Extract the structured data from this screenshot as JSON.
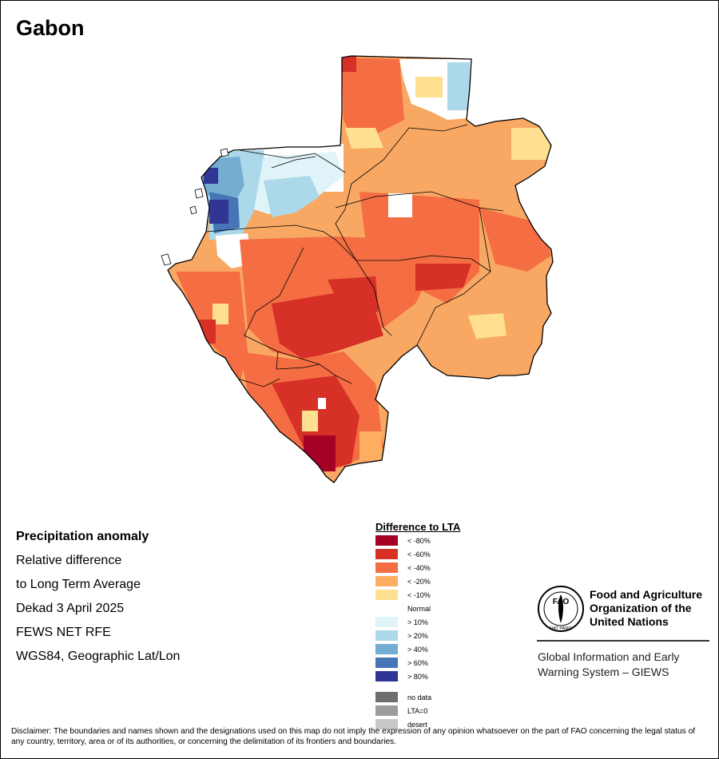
{
  "title": "Gabon",
  "info": {
    "line1": "Precipitation anomaly",
    "line2": "Relative difference",
    "line3": "to Long Term Average",
    "line4": "Dekad 3 April 2025",
    "line5": "FEWS NET RFE",
    "line6": "WGS84, Geographic Lat/Lon"
  },
  "legend": {
    "title": "Difference to LTA",
    "items": [
      {
        "label": "< -80%",
        "color": "#a50026"
      },
      {
        "label": "< -60%",
        "color": "#d73027"
      },
      {
        "label": "< -40%",
        "color": "#f46d43"
      },
      {
        "label": "< -20%",
        "color": "#fdae61"
      },
      {
        "label": "< -10%",
        "color": "#fee090"
      },
      {
        "label": "Normal",
        "color": "#ffffff"
      },
      {
        "label": "> 10%",
        "color": "#e0f3f8"
      },
      {
        "label": "> 20%",
        "color": "#abd9e9"
      },
      {
        "label": "> 40%",
        "color": "#74add1"
      },
      {
        "label": "> 60%",
        "color": "#4575b4"
      },
      {
        "label": "> 80%",
        "color": "#313695"
      }
    ],
    "extra": [
      {
        "label": "no data",
        "color": "#6e6e6e"
      },
      {
        "label": "LTA=0",
        "color": "#9c9c9c"
      },
      {
        "label": "desert",
        "color": "#c8c8c8"
      }
    ]
  },
  "org": {
    "logo_text": "FAO",
    "logo_motto": "FIAT PANIS",
    "name_line1": "Food and Agriculture",
    "name_line2": "Organization of the",
    "name_line3": "United Nations",
    "giews_line1": "Global Information and Early",
    "giews_line2": "Warning System – GIEWS"
  },
  "disclaimer": "Disclaimer: The boundaries and names shown and the designations used on this map do not imply the expression of any opinion whatsoever on the part of FAO concerning the legal status of any country, territory, area or of its authorities, or concerning the delimitation of its frontiers and boundaries."
}
